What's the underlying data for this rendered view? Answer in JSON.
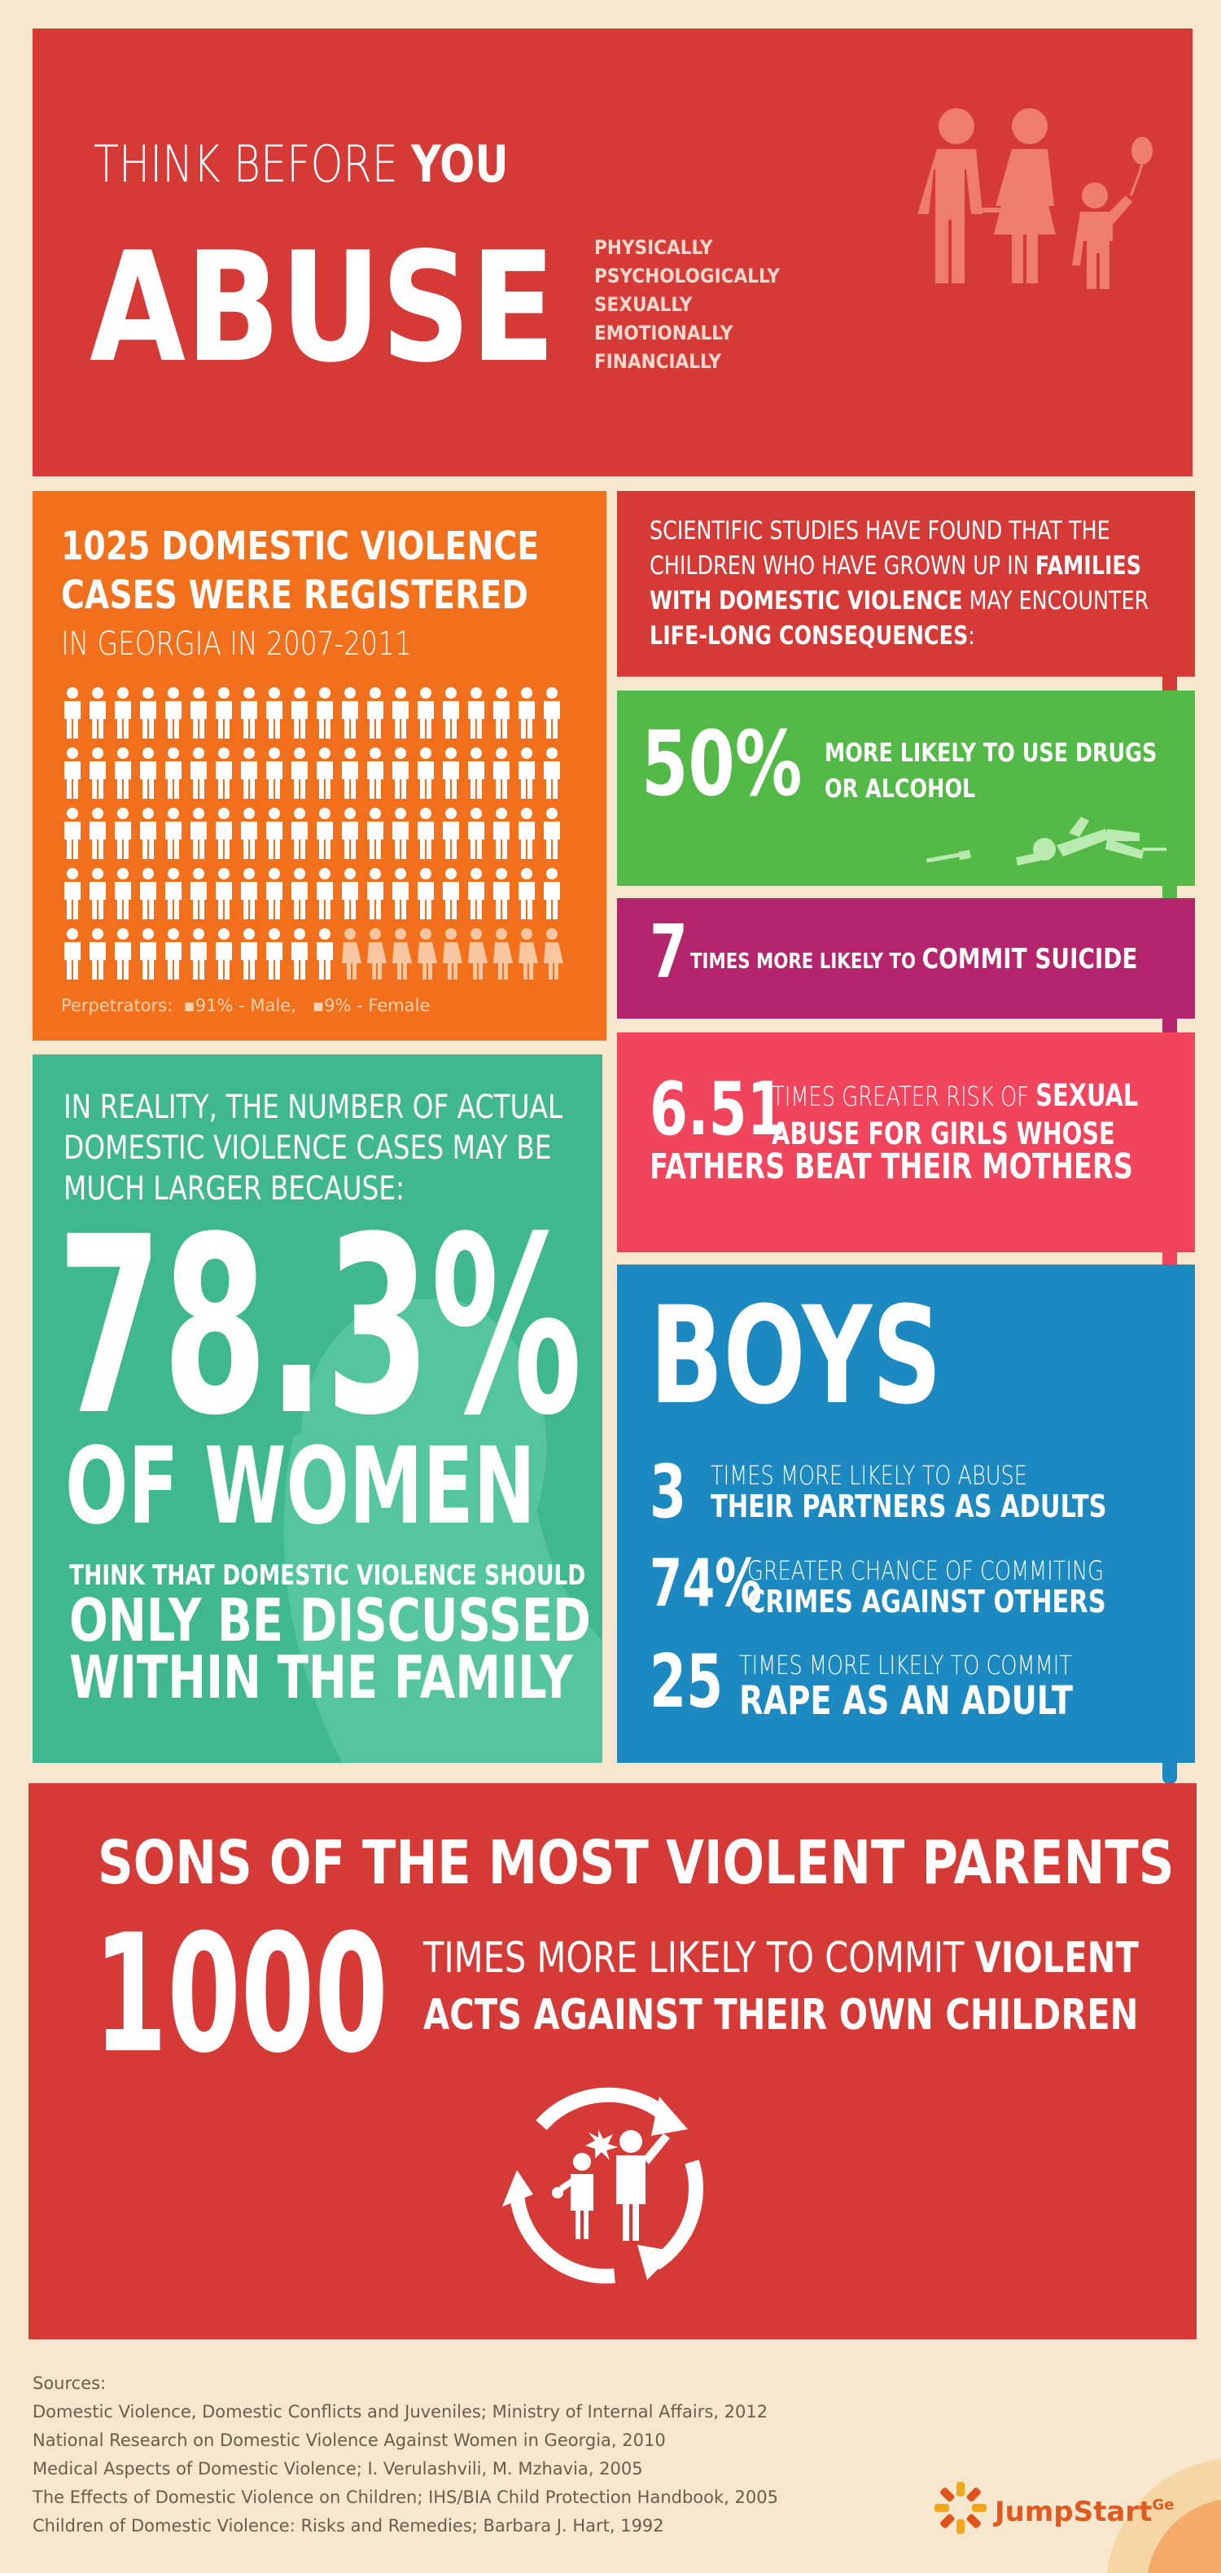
{
  "header": {
    "think_before": "THINK BEFORE",
    "you": "YOU",
    "abuse": "ABUSE",
    "forms": [
      "PHYSICALLY",
      "PSYCHOLOGICALLY",
      "SEXUALLY",
      "EMOTIONALLY",
      "FINANCIALLY"
    ],
    "accent": "#d63a37"
  },
  "cases": {
    "line1": "1025 DOMESTIC VIOLENCE",
    "line2": "CASES WERE REGISTERED",
    "line3": "IN GEORGIA IN 2007-2011",
    "perpetrators_label": "Perpetrators:",
    "male": "91% - Male,",
    "female": "9% - Female",
    "male_fraction": 0.91,
    "female_fraction": 0.09,
    "accent": "#f2701c"
  },
  "studies": {
    "text_a": "SCIENTIFIC STUDIES HAVE FOUND THAT THE CHILDREN WHO HAVE GROWN UP IN ",
    "text_b": "FAMILIES WITH DOMESTIC VIOLENCE",
    "text_c": " MAY ENCOUNTER ",
    "text_d": "LIFE-LONG CONSEQUENCES",
    "text_e": ":"
  },
  "drugs": {
    "big": "50%",
    "line1": "MORE LIKELY TO USE DRUGS",
    "line2": "OR ALCOHOL"
  },
  "suicide": {
    "big": "7",
    "text_a": "TIMES MORE LIKELY TO ",
    "text_b": "COMMIT SUICIDE"
  },
  "girls": {
    "big": "6.51",
    "line1_a": "TIMES GREATER RISK OF ",
    "line1_b": "SEXUAL",
    "line2": "ABUSE FOR GIRLS WHOSE",
    "line3": "FATHERS BEAT THEIR MOTHERS"
  },
  "women": {
    "intro": "IN REALITY, THE NUMBER OF ACTUAL DOMESTIC VIOLENCE CASES MAY BE MUCH LARGER BECAUSE:",
    "big": "78.3%",
    "of_women": "OF WOMEN",
    "t1": "THINK THAT DOMESTIC VIOLENCE SHOULD",
    "t2": "ONLY BE DISCUSSED",
    "t3": "WITHIN THE FAMILY"
  },
  "boys": {
    "title": "BOYS",
    "stats": [
      {
        "num": "3",
        "l1": "TIMES MORE LIKELY TO ABUSE",
        "l2": "THEIR PARTNERS AS ADULTS"
      },
      {
        "num": "74%",
        "l1": "GREATER CHANCE OF COMMITING",
        "l2": "CRIMES AGAINST OTHERS"
      },
      {
        "num": "25",
        "l1": "TIMES MORE LIKELY TO COMMIT",
        "l2": "RAPE AS AN ADULT"
      }
    ]
  },
  "sons": {
    "title": "SONS OF THE MOST VIOLENT PARENTS",
    "big": "1000",
    "line1_a": "TIMES MORE LIKELY TO COMMIT ",
    "line1_b": "VIOLENT",
    "line2": "ACTS AGAINST THEIR OWN CHILDREN"
  },
  "sources": {
    "heading": "Sources:",
    "items": [
      "Domestic Violence, Domestic Conflicts and Juveniles; Ministry of Internal Affairs, 2012",
      "National Research on Domestic Violence Against Women in Georgia, 2010",
      "Medical Aspects of Domestic Violence; I. Verulashvili, M. Mzhavia, 2005",
      "The Effects of Domestic Violence on Children; IHS/BIA Child Protection Handbook, 2005",
      "Children of Domestic Violence: Risks and Remedies; Barbara J. Hart, 1992"
    ]
  },
  "brand": {
    "name": "JumpStart",
    "suffix": "Ge"
  }
}
